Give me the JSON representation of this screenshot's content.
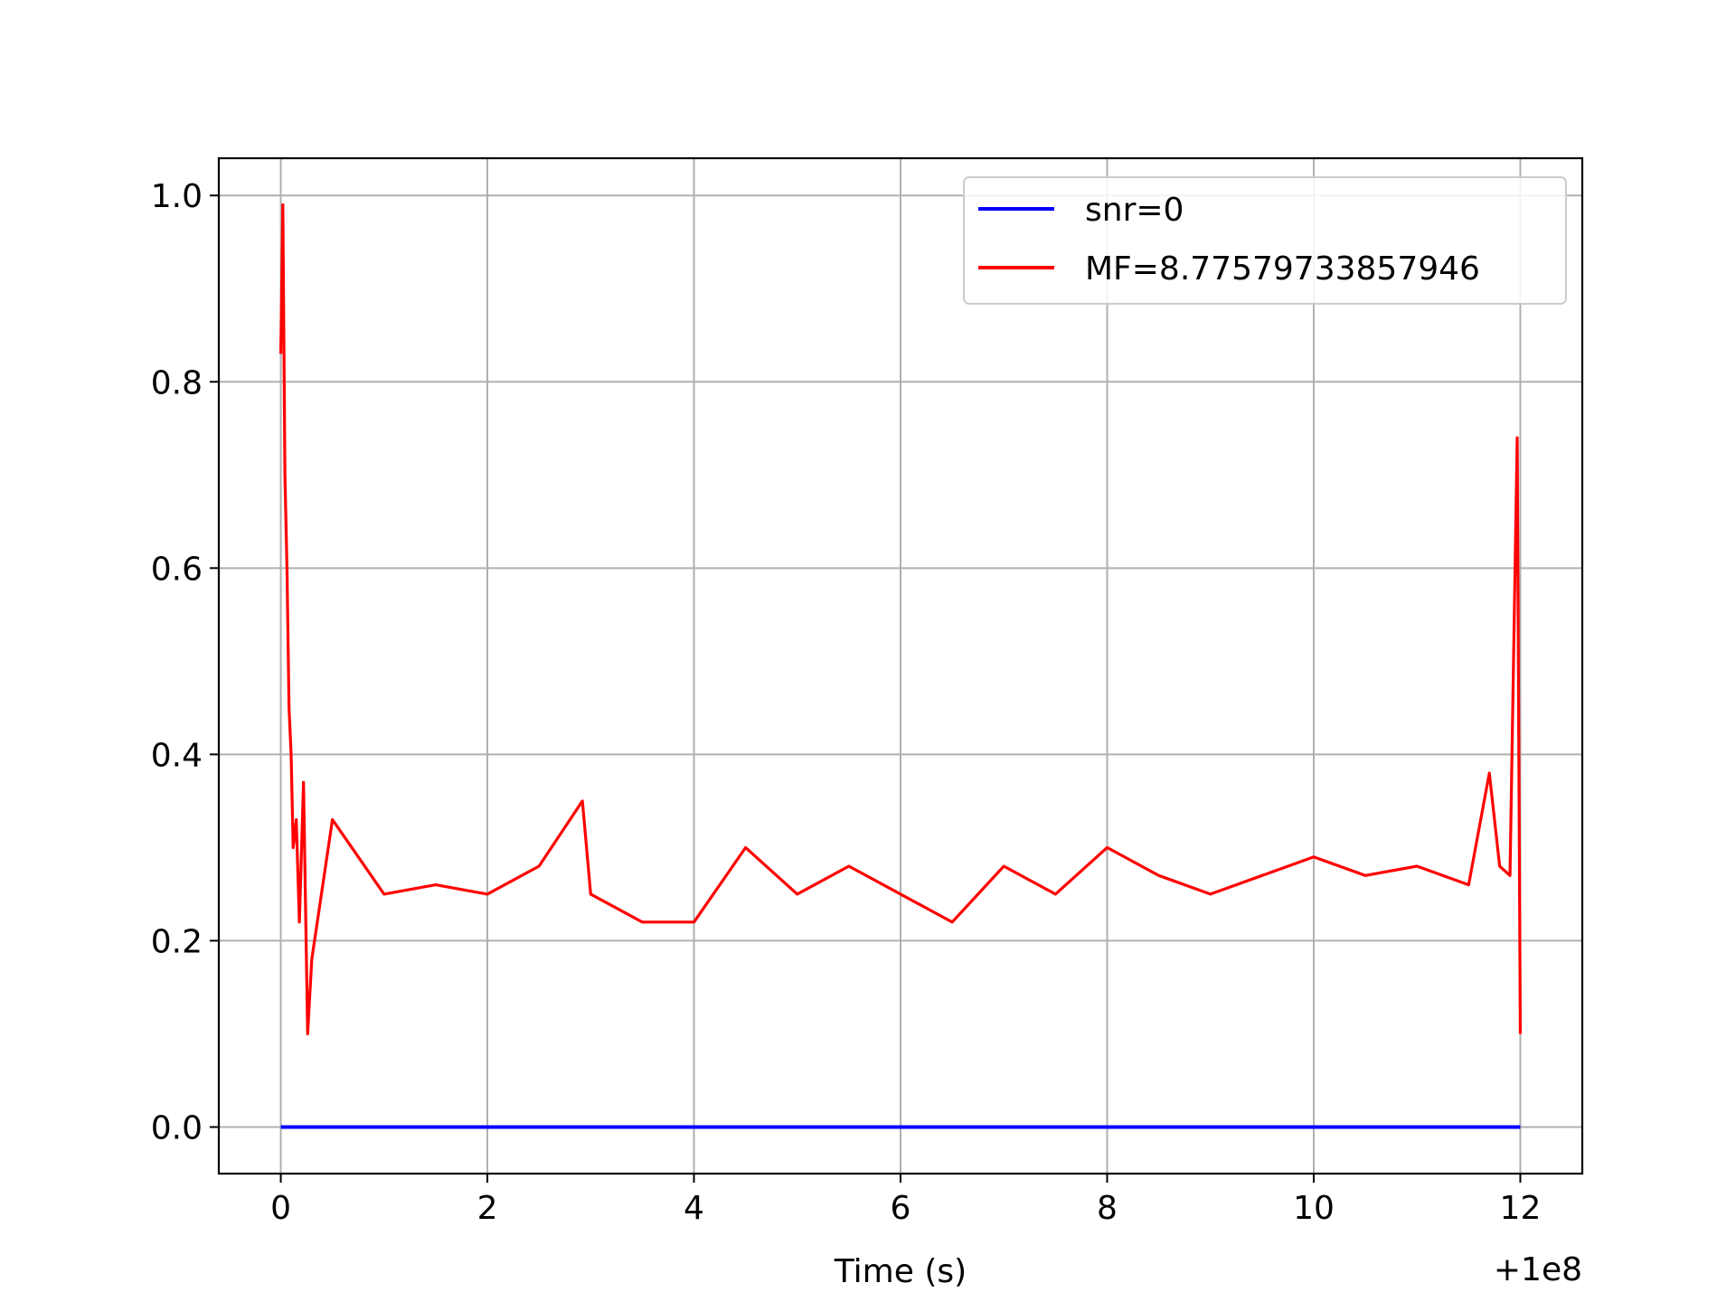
{
  "chart_data": {
    "type": "line",
    "title": "",
    "xlabel": "Time (s)",
    "ylabel": "",
    "x_offset_label": "+1e8",
    "xlim": [
      -0.6,
      12.6
    ],
    "ylim": [
      -0.05,
      1.04
    ],
    "x_ticks": [
      0,
      2,
      4,
      6,
      8,
      10,
      12
    ],
    "x_tick_labels": [
      "0",
      "2",
      "4",
      "6",
      "8",
      "10",
      "12"
    ],
    "y_ticks": [
      0.0,
      0.2,
      0.4,
      0.6,
      0.8,
      1.0
    ],
    "y_tick_labels": [
      "0.0",
      "0.2",
      "0.4",
      "0.6",
      "0.8",
      "1.0"
    ],
    "grid": true,
    "legend_position": "upper right",
    "series": [
      {
        "name": "snr=0",
        "color": "#0000ff",
        "x": [
          0,
          12
        ],
        "y": [
          0.0,
          0.0
        ]
      },
      {
        "name": "MF=8.77579733857946",
        "color": "#ff0000",
        "x": [
          0.0,
          0.02,
          0.04,
          0.06,
          0.08,
          0.1,
          0.12,
          0.15,
          0.18,
          0.22,
          0.26,
          0.3,
          0.5,
          1.0,
          1.5,
          2.0,
          2.5,
          2.92,
          3.0,
          3.5,
          4.0,
          4.5,
          5.0,
          5.5,
          6.0,
          6.5,
          7.0,
          7.5,
          8.0,
          8.5,
          9.0,
          9.5,
          10.0,
          10.5,
          11.0,
          11.5,
          11.7,
          11.8,
          11.9,
          11.97,
          12.0
        ],
        "y": [
          0.83,
          0.99,
          0.7,
          0.6,
          0.45,
          0.4,
          0.3,
          0.33,
          0.22,
          0.37,
          0.1,
          0.18,
          0.33,
          0.25,
          0.26,
          0.25,
          0.28,
          0.35,
          0.25,
          0.22,
          0.22,
          0.3,
          0.25,
          0.28,
          0.25,
          0.22,
          0.28,
          0.25,
          0.3,
          0.27,
          0.25,
          0.27,
          0.29,
          0.27,
          0.28,
          0.26,
          0.38,
          0.28,
          0.27,
          0.74,
          0.1
        ]
      }
    ]
  }
}
